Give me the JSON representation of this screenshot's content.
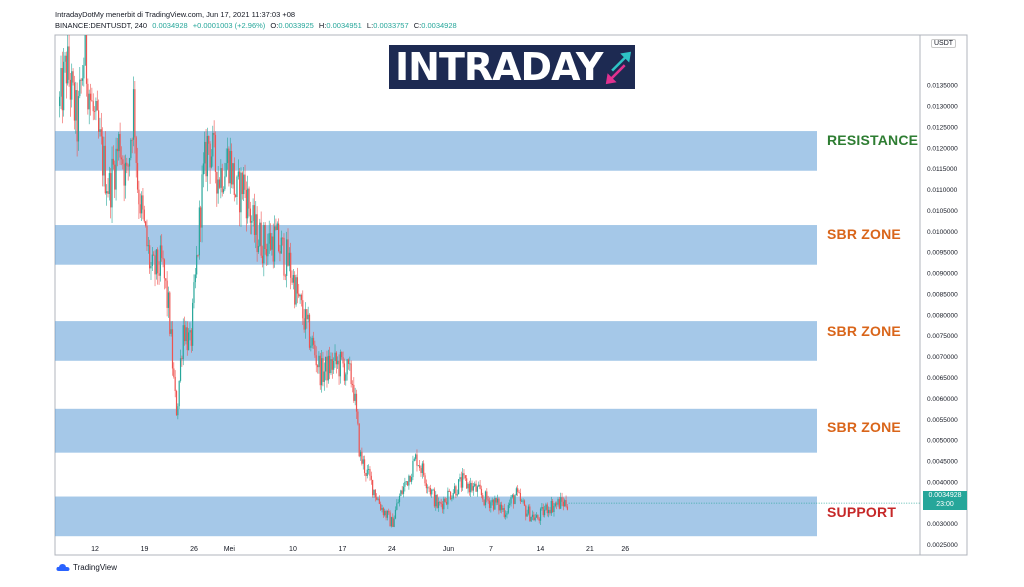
{
  "header": {
    "line1": "IntradayDotMy menerbit di TradingView.com, Jun 17, 2021 11:37:03 +08",
    "symbol": "BINANCE:DENTUSDT, 240",
    "last": "0.0034928",
    "change": "+0.0001003 (+2.96%)",
    "o_label": "O:",
    "o_value": "0.0033925",
    "h_label": "H:",
    "h_value": "0.0034951",
    "l_label": "L:",
    "l_value": "0.0033757",
    "c_label": "C:",
    "c_value": "0.0034928"
  },
  "logo": {
    "part1": "INTRA",
    "part2": "DAY"
  },
  "footer": {
    "brand": "TradingView"
  },
  "price_tag": {
    "price": "0.0034928",
    "countdown": "23:00"
  },
  "currency": "USDT",
  "colors": {
    "up": "#26a69a",
    "down": "#ef5350",
    "zone": "#5b9bd5",
    "resistance_label": "#2e7d32",
    "sbr_label": "#d9651a",
    "support_label": "#c62828",
    "logo_bg": "#1d2a52",
    "logo_arrow_up": "#2ec4c6",
    "logo_arrow_down": "#e0318f"
  },
  "chart_data": {
    "type": "candlestick",
    "ylim": [
      0.00225,
      0.0147
    ],
    "x_ticks": [
      {
        "label": "12",
        "day": 12
      },
      {
        "label": "19",
        "day": 19
      },
      {
        "label": "26",
        "day": 26
      },
      {
        "label": "Mei",
        "day": 31
      },
      {
        "label": "10",
        "day": 40
      },
      {
        "label": "17",
        "day": 47
      },
      {
        "label": "24",
        "day": 54
      },
      {
        "label": "Jun",
        "day": 62
      },
      {
        "label": "7",
        "day": 68
      },
      {
        "label": "14",
        "day": 75
      },
      {
        "label": "21",
        "day": 82
      },
      {
        "label": "26",
        "day": 87
      }
    ],
    "y_ticks": [
      "0.0135000",
      "0.0130000",
      "0.0125000",
      "0.0120000",
      "0.0115000",
      "0.0110000",
      "0.0105000",
      "0.0100000",
      "0.0095000",
      "0.0090000",
      "0.0085000",
      "0.0080000",
      "0.0075000",
      "0.0070000",
      "0.0065000",
      "0.0060000",
      "0.0055000",
      "0.0050000",
      "0.0045000",
      "0.0040000",
      "0.0030000",
      "0.0025000"
    ],
    "zones": [
      {
        "label": "RESISTANCE",
        "kind": "resistance",
        "low": 0.01145,
        "high": 0.0124
      },
      {
        "label": "SBR ZONE",
        "kind": "sbr",
        "low": 0.0092,
        "high": 0.01015
      },
      {
        "label": "SBR ZONE",
        "kind": "sbr",
        "low": 0.0069,
        "high": 0.00785
      },
      {
        "label": "SBR ZONE",
        "kind": "sbr",
        "low": 0.0047,
        "high": 0.00575
      },
      {
        "label": "SUPPORT",
        "kind": "support",
        "low": 0.0027,
        "high": 0.00365
      }
    ],
    "current_price": 0.0034928,
    "anchors": [
      [
        7.0,
        0.013
      ],
      [
        8.0,
        0.014
      ],
      [
        9.5,
        0.0125
      ],
      [
        10.5,
        0.0143
      ],
      [
        11.5,
        0.013
      ],
      [
        13.0,
        0.0118
      ],
      [
        14.0,
        0.011
      ],
      [
        15.5,
        0.0122
      ],
      [
        16.5,
        0.0112
      ],
      [
        17.5,
        0.0132
      ],
      [
        18.0,
        0.0112
      ],
      [
        19.0,
        0.01
      ],
      [
        20.0,
        0.009
      ],
      [
        21.5,
        0.0092
      ],
      [
        22.5,
        0.008
      ],
      [
        23.3,
        0.006
      ],
      [
        23.6,
        0.0057
      ],
      [
        24.5,
        0.0078
      ],
      [
        25.5,
        0.0072
      ],
      [
        26.5,
        0.0095
      ],
      [
        27.0,
        0.0108
      ],
      [
        28.0,
        0.0122
      ],
      [
        29.5,
        0.0113
      ],
      [
        31.0,
        0.0118
      ],
      [
        32.0,
        0.0108
      ],
      [
        33.0,
        0.0112
      ],
      [
        34.5,
        0.01
      ],
      [
        36.0,
        0.0097
      ],
      [
        37.5,
        0.0098
      ],
      [
        39.5,
        0.0092
      ],
      [
        41.0,
        0.0082
      ],
      [
        42.5,
        0.0074
      ],
      [
        44.0,
        0.0066
      ],
      [
        45.5,
        0.0068
      ],
      [
        47.0,
        0.0068
      ],
      [
        48.5,
        0.0064
      ],
      [
        49.5,
        0.0046
      ],
      [
        51.0,
        0.004
      ],
      [
        52.5,
        0.0034
      ],
      [
        54.0,
        0.003
      ],
      [
        55.0,
        0.0036
      ],
      [
        56.0,
        0.004
      ],
      [
        57.5,
        0.0046
      ],
      [
        59.0,
        0.004
      ],
      [
        60.5,
        0.0034
      ],
      [
        62.0,
        0.0037
      ],
      [
        64.0,
        0.004
      ],
      [
        66.0,
        0.0038
      ],
      [
        67.0,
        0.0036
      ],
      [
        68.5,
        0.0035
      ],
      [
        70.0,
        0.0033
      ],
      [
        71.5,
        0.0037
      ],
      [
        73.0,
        0.0033
      ],
      [
        74.5,
        0.0031
      ],
      [
        76.0,
        0.0034
      ],
      [
        78.0,
        0.0035
      ],
      [
        79.0,
        0.0034928
      ]
    ]
  }
}
